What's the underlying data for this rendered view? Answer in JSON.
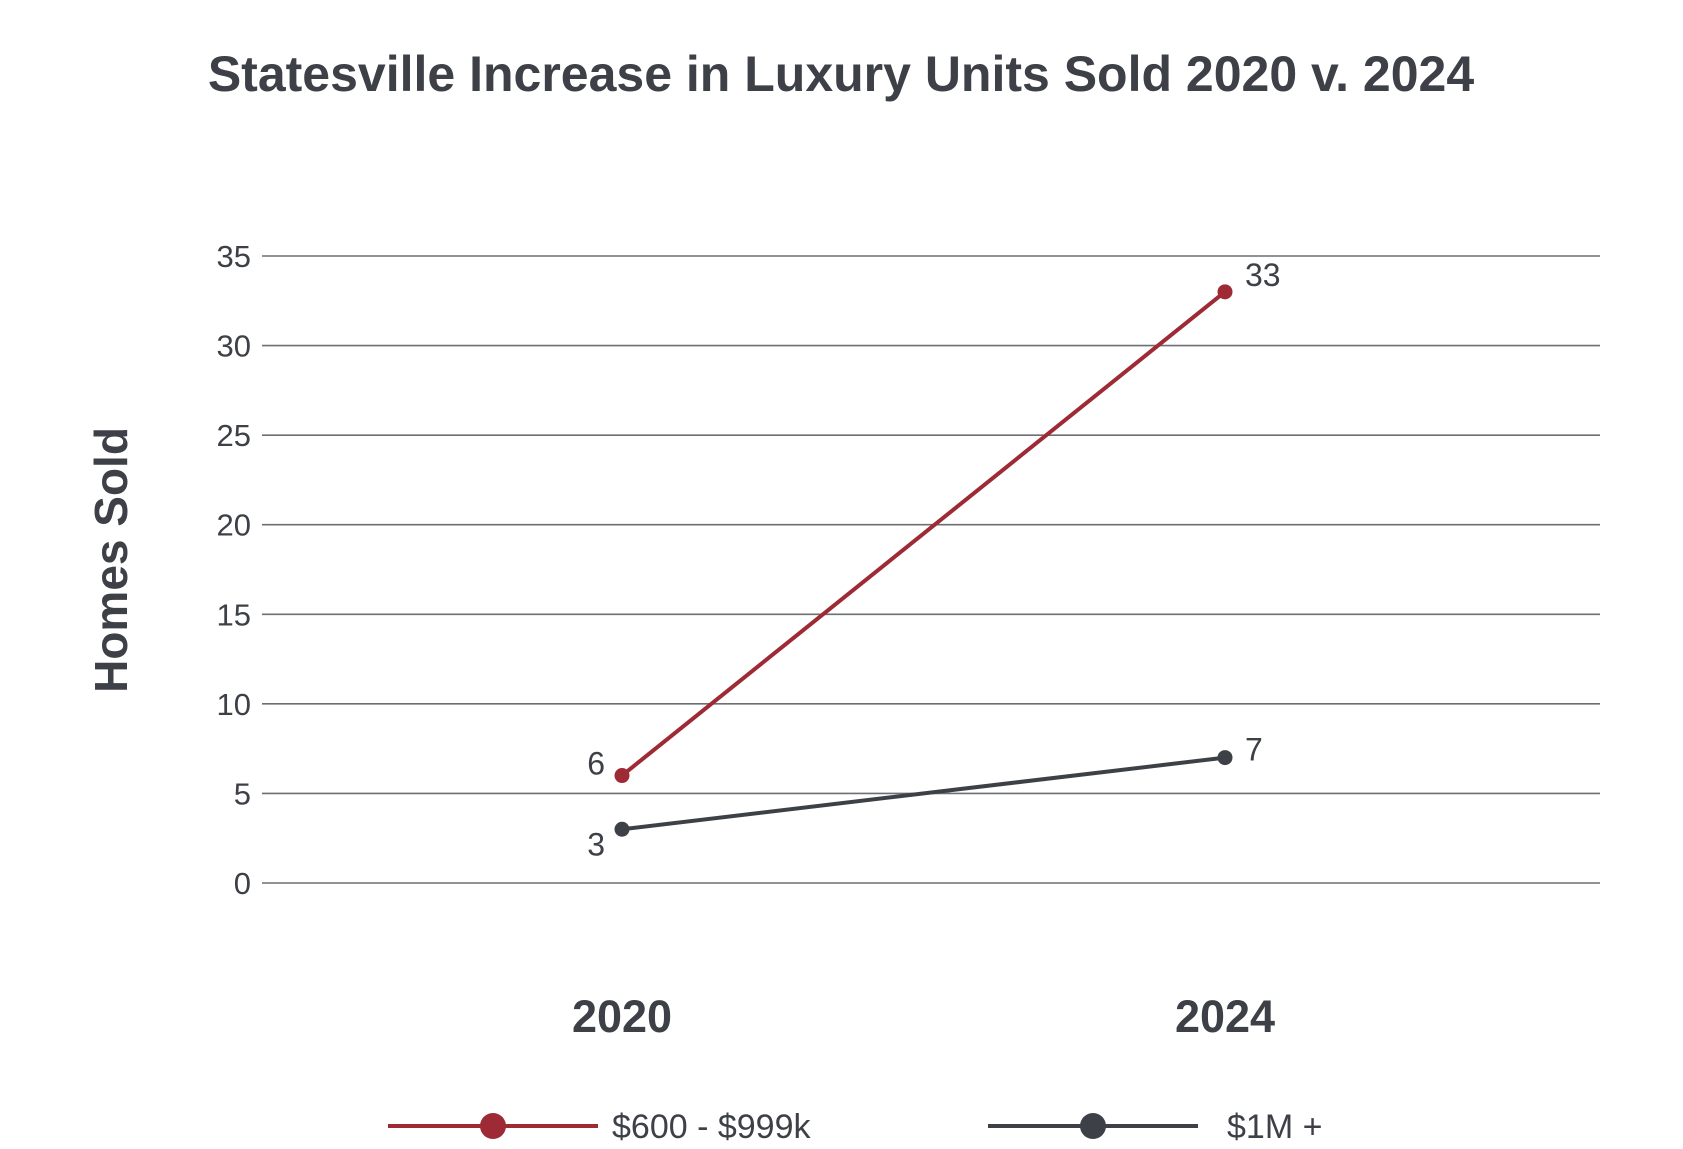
{
  "chart_data": {
    "type": "line",
    "title": "Statesville Increase in Luxury Units Sold 2020 v. 2024",
    "xlabel": "",
    "ylabel": "Homes Sold",
    "categories": [
      "2020",
      "2024"
    ],
    "ylim": [
      0,
      35
    ],
    "yticks": [
      0,
      5,
      10,
      15,
      20,
      25,
      30,
      35
    ],
    "grid": true,
    "legend_position": "bottom",
    "series": [
      {
        "name": "$600 - $999k",
        "color": "#9e2a35",
        "values": [
          6,
          33
        ],
        "labels": [
          "6",
          "33"
        ]
      },
      {
        "name": "$1M +",
        "color": "#3d4147",
        "values": [
          3,
          7
        ],
        "labels": [
          "3",
          "7"
        ]
      }
    ]
  }
}
